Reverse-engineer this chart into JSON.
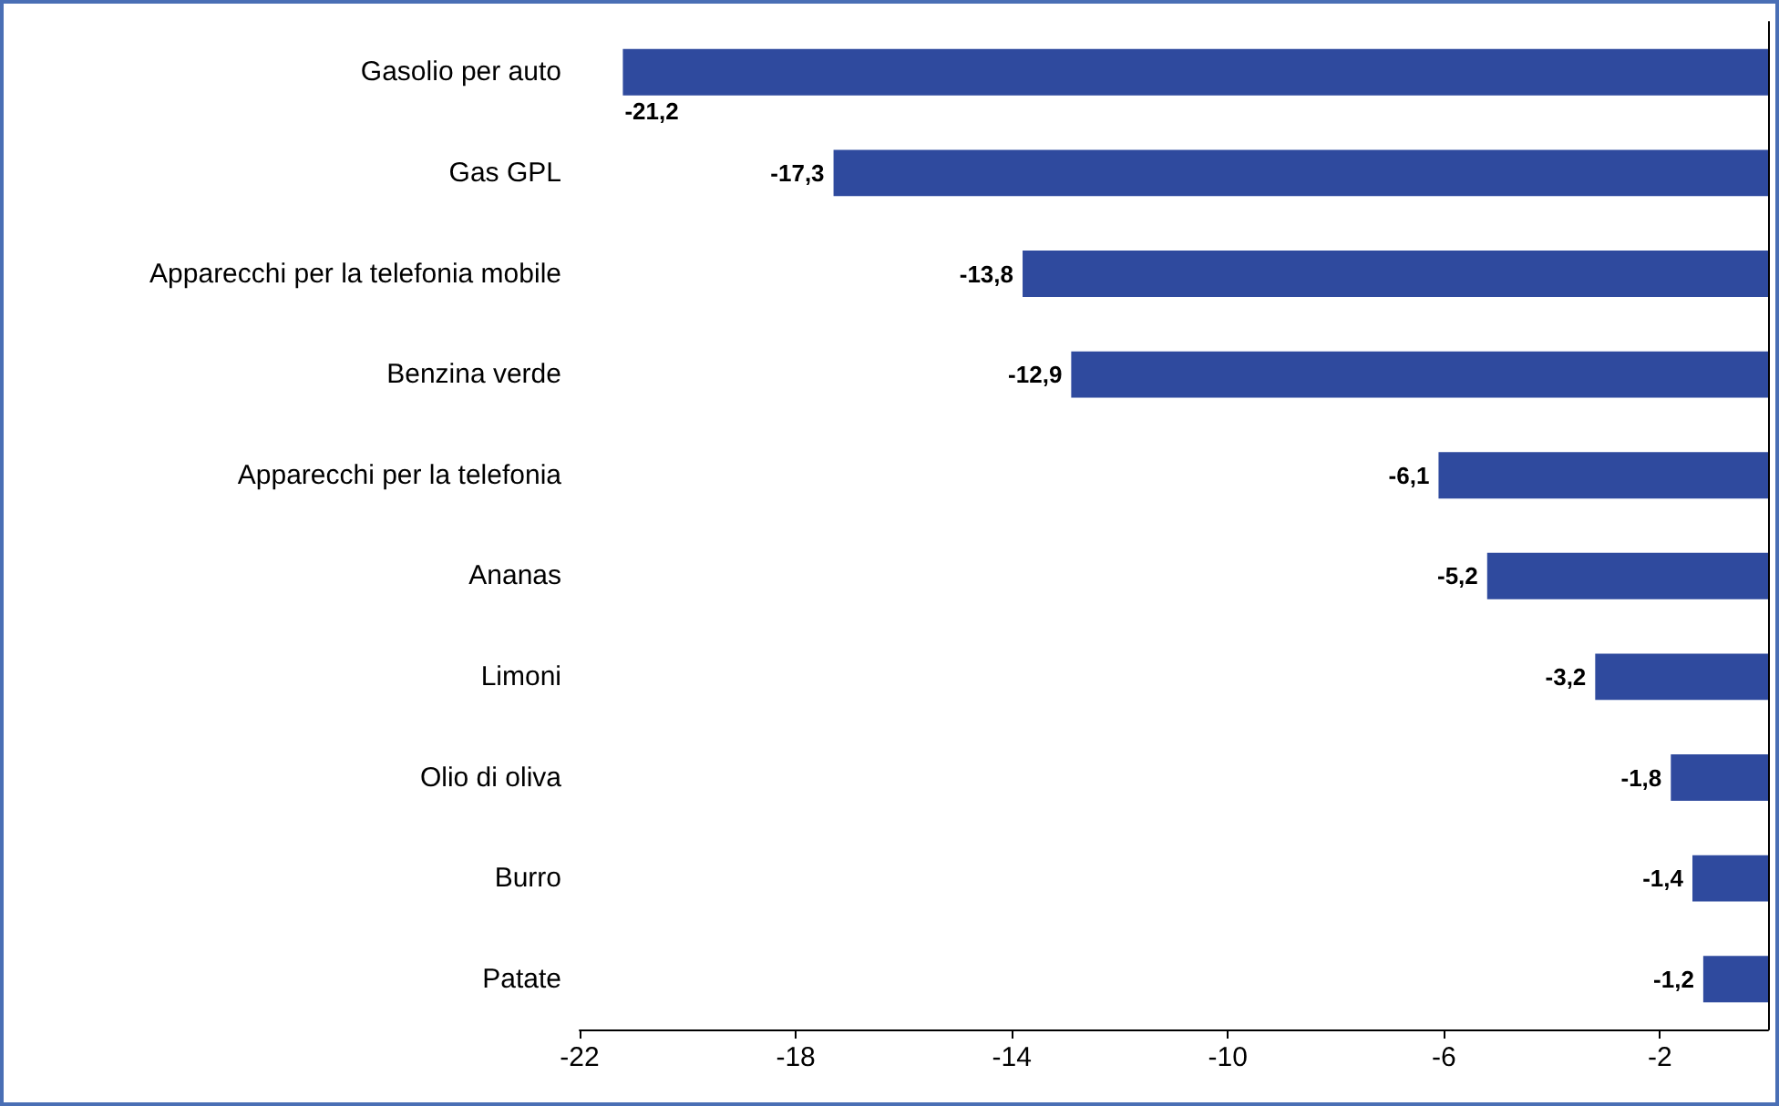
{
  "chart_data": {
    "type": "bar",
    "orientation": "horizontal",
    "categories": [
      "Gasolio per auto",
      "Gas GPL",
      "Apparecchi per la telefonia mobile",
      "Benzina verde",
      "Apparecchi per la telefonia",
      "Ananas",
      "Limoni",
      "Olio di oliva",
      "Burro",
      "Patate"
    ],
    "values": [
      -21.2,
      -17.3,
      -13.8,
      -12.9,
      -6.1,
      -5.2,
      -3.2,
      -1.8,
      -1.4,
      -1.2
    ],
    "value_labels": [
      "-21,2",
      "-17,3",
      "-13,8",
      "-12,9",
      "-6,1",
      "-5,2",
      "-3,2",
      "-1,8",
      "-1,4",
      "-1,2"
    ],
    "color": "#2f4a9e",
    "xlim": [
      -22,
      0
    ],
    "xticks": [
      -22,
      -18,
      -14,
      -10,
      -6,
      -2
    ],
    "grid": false
  }
}
